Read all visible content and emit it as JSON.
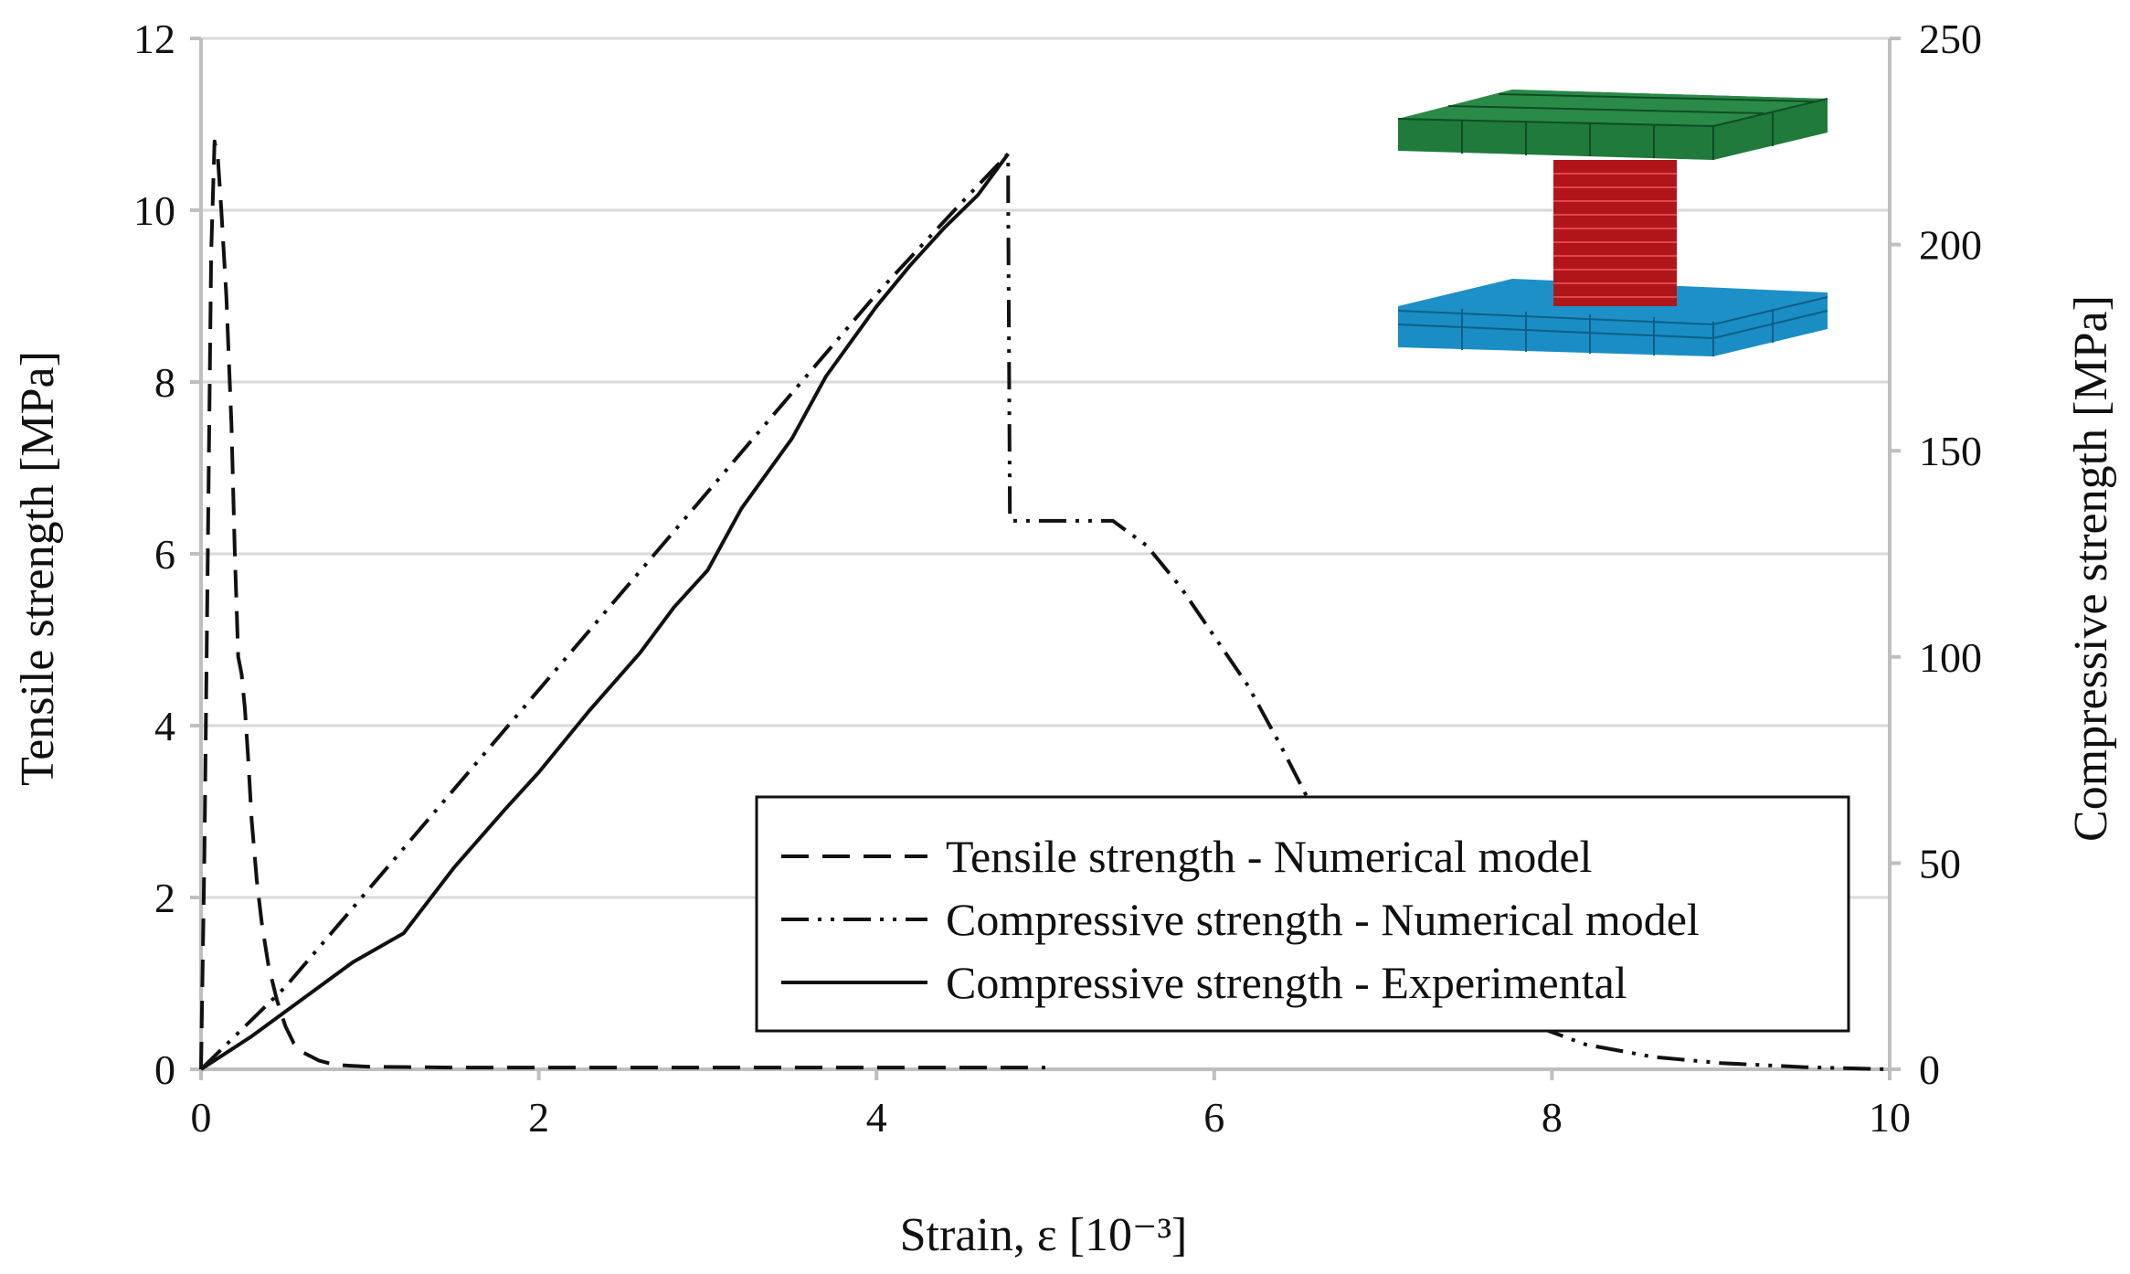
{
  "chart_data": {
    "type": "line",
    "xlabel": "Strain, ε [10⁻³]",
    "ylabel": "Tensile strength [MPa]",
    "y2label": "Compressive strength [MPa]",
    "xlim": [
      0,
      10
    ],
    "ylim": [
      0,
      12
    ],
    "y2lim": [
      0,
      250
    ],
    "xticks": [
      0,
      2,
      4,
      6,
      8,
      10
    ],
    "yticks": [
      0,
      2,
      4,
      6,
      8,
      10,
      12
    ],
    "y2ticks": [
      0,
      50,
      100,
      150,
      200,
      250
    ],
    "grid": "horizontal",
    "legend_position": "lower-right",
    "series": [
      {
        "name": "Tensile strength - Numerical model",
        "axis": "left",
        "style": "dashed",
        "x": [
          0,
          0.02,
          0.04,
          0.06,
          0.08,
          0.1,
          0.12,
          0.15,
          0.18,
          0.2,
          0.22,
          0.24,
          0.26,
          0.28,
          0.3,
          0.33,
          0.36,
          0.4,
          0.45,
          0.5,
          0.55,
          0.6,
          0.7,
          0.8,
          1.0,
          1.5,
          2,
          3,
          4,
          5
        ],
        "y": [
          0,
          2.5,
          6.0,
          9.5,
          10.8,
          10.6,
          10.0,
          9.0,
          7.5,
          6.0,
          4.8,
          4.6,
          4.2,
          3.6,
          2.9,
          2.2,
          1.7,
          1.2,
          0.8,
          0.5,
          0.3,
          0.2,
          0.1,
          0.05,
          0.03,
          0.02,
          0.02,
          0.02,
          0.02,
          0.02
        ]
      },
      {
        "name": "Compressive strength - Numerical model",
        "axis": "right",
        "style": "dash-dot-dot",
        "x": [
          0,
          0.5,
          1.0,
          1.5,
          2.0,
          2.5,
          3.0,
          3.5,
          4.0,
          4.5,
          4.78,
          4.78,
          4.79,
          4.8,
          5.0,
          5.2,
          5.4,
          5.6,
          5.8,
          6.0,
          6.2,
          6.4,
          6.6,
          7.0,
          7.4,
          7.8,
          8.2,
          8.6,
          9.0,
          9.5,
          10.0
        ],
        "y": [
          0,
          20,
          44,
          68,
          92,
          116,
          140,
          164,
          188,
          210,
          222,
          212,
          134,
          133,
          133,
          133,
          133,
          127,
          117,
          105,
          93,
          78,
          62,
          40,
          23,
          12,
          6,
          3,
          1.5,
          0.5,
          0
        ]
      },
      {
        "name": "Compressive strength - Experimental",
        "axis": "right",
        "style": "solid",
        "x": [
          0,
          0.3,
          0.6,
          0.9,
          1.2,
          1.5,
          1.8,
          2.0,
          2.3,
          2.6,
          2.8,
          3.0,
          3.2,
          3.5,
          3.7,
          4.0,
          4.2,
          4.4,
          4.6,
          4.78
        ],
        "y": [
          0,
          8,
          17,
          26,
          33,
          49,
          63,
          72,
          87,
          101,
          112,
          121,
          136,
          153,
          168,
          185,
          195,
          204,
          212,
          222
        ]
      }
    ]
  }
}
